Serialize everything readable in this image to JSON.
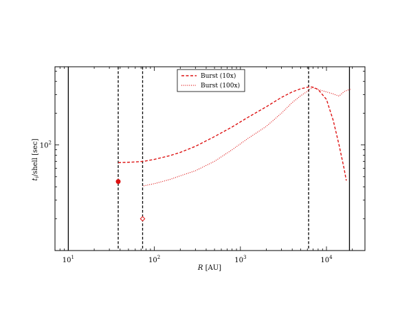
{
  "chart_data": {
    "type": "line",
    "xscale": "log",
    "yscale": "log",
    "xlim": [
      7,
      28000
    ],
    "ylim": [
      10,
      550
    ],
    "xlabel_italic": "R",
    "xlabel_rest": " [AU]",
    "ylabel_italic": "t",
    "ylabel_sub": "i",
    "ylabel_rest": "/shell [sec]",
    "x_ticks": [
      {
        "base": "10",
        "exp": "1",
        "value": 10
      },
      {
        "base": "10",
        "exp": "2",
        "value": 100
      },
      {
        "base": "10",
        "exp": "3",
        "value": 1000
      },
      {
        "base": "10",
        "exp": "4",
        "value": 10000
      }
    ],
    "y_ticks": [
      {
        "base": "10",
        "exp": "2",
        "value": 100
      }
    ],
    "grid": false,
    "legend_position": "top-center",
    "series": [
      {
        "name": "Burst (10x)",
        "color": "#dd1111",
        "dash": "dashed",
        "x": [
          38,
          60,
          75,
          100,
          150,
          200,
          300,
          500,
          800,
          1200,
          2000,
          3000,
          4000,
          5000,
          6000,
          6500,
          7000,
          8000,
          10000,
          12000,
          14000,
          16000,
          17000
        ],
        "y": [
          68,
          69,
          70,
          73,
          79,
          85,
          97,
          120,
          148,
          181,
          230,
          282,
          318,
          340,
          352,
          355,
          352,
          335,
          270,
          170,
          100,
          60,
          46
        ]
      },
      {
        "name": "Burst (100x)",
        "color": "#dd1111",
        "dash": "dotted",
        "x": [
          75,
          100,
          150,
          200,
          300,
          500,
          800,
          1200,
          2000,
          3000,
          4000,
          5000,
          6000,
          6500,
          7000,
          8000,
          10000,
          12000,
          14000,
          16000,
          19000
        ],
        "y": [
          41,
          43,
          47,
          51,
          57,
          70,
          90,
          114,
          150,
          200,
          252,
          292,
          322,
          340,
          348,
          335,
          318,
          304,
          290,
          320,
          338
        ]
      }
    ],
    "markers": [
      {
        "x": 38,
        "y": 45,
        "style": "filled",
        "color": "#dd1111"
      },
      {
        "x": 73,
        "y": 20,
        "style": "open-diamond",
        "color": "#dd1111"
      }
    ],
    "vlines": [
      {
        "x": 10,
        "style": "solid"
      },
      {
        "x": 38,
        "style": "dashed"
      },
      {
        "x": 73,
        "style": "dashed"
      },
      {
        "x": 6200,
        "style": "dashed"
      },
      {
        "x": 18500,
        "style": "solid"
      }
    ]
  }
}
